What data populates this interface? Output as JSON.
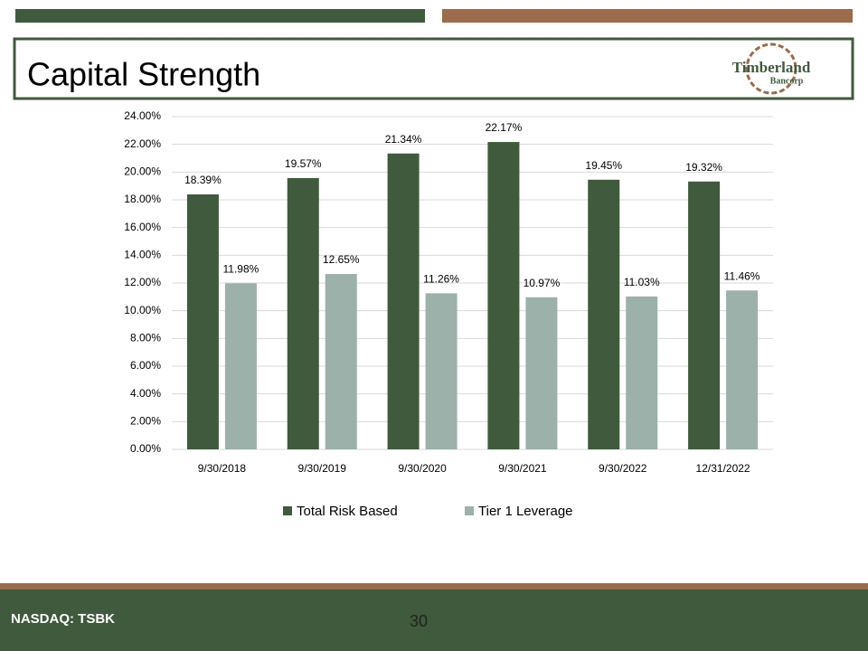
{
  "chart_data": {
    "type": "bar",
    "title": "Capital Strength",
    "categories": [
      "9/30/2018",
      "9/30/2019",
      "9/30/2020",
      "9/30/2021",
      "9/30/2022",
      "12/31/2022"
    ],
    "series": [
      {
        "name": "Total Risk Based",
        "color": "#3f5a3c",
        "values": [
          18.39,
          19.57,
          21.34,
          22.17,
          19.45,
          19.32
        ],
        "value_labels": [
          "18.39%",
          "19.57%",
          "21.34%",
          "22.17%",
          "19.45%",
          "19.32%"
        ]
      },
      {
        "name": "Tier 1 Leverage",
        "color": "#9bb1aa",
        "values": [
          11.98,
          12.65,
          11.26,
          10.97,
          11.03,
          11.46
        ],
        "value_labels": [
          "11.98%",
          "12.65%",
          "11.26%",
          "10.97%",
          "11.03%",
          "11.46%"
        ]
      }
    ],
    "ylim": [
      0,
      24
    ],
    "yticks": [
      {
        "value": 0,
        "label": "0.00%"
      },
      {
        "value": 2,
        "label": "2.00%"
      },
      {
        "value": 4,
        "label": "4.00%"
      },
      {
        "value": 6,
        "label": "6.00%"
      },
      {
        "value": 8,
        "label": "8.00%"
      },
      {
        "value": 10,
        "label": "10.00%"
      },
      {
        "value": 12,
        "label": "12.00%"
      },
      {
        "value": 14,
        "label": "14.00%"
      },
      {
        "value": 16,
        "label": "16.00%"
      },
      {
        "value": 18,
        "label": "18.00%"
      },
      {
        "value": 20,
        "label": "20.00%"
      },
      {
        "value": 22,
        "label": "22.00%"
      },
      {
        "value": 24,
        "label": "24.00%"
      }
    ],
    "grid": true,
    "legend": "bottom"
  },
  "logo": {
    "name": "Timberland",
    "sub": "Bancorp"
  },
  "footer": {
    "ticker": "NASDAQ: TSBK",
    "page": "30"
  }
}
